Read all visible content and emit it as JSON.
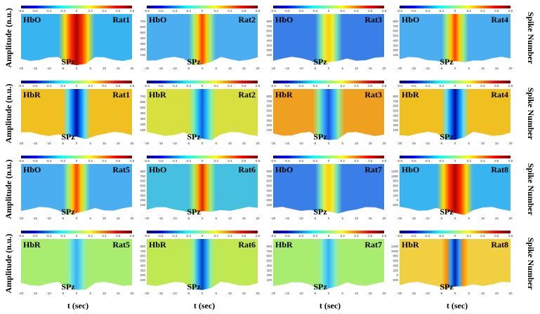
{
  "chart_data": {
    "type": "heatmap",
    "layout": "4x4 grid of panels",
    "ylabel_left": "Amplitude (n.u.)",
    "ylabel_right": "Spike Number",
    "xlabel": "t (sec)",
    "x_ticks": [
      "-20",
      "-15",
      "-10",
      "-5",
      "0",
      "5",
      "10",
      "15",
      "20"
    ],
    "xlim": [
      -20,
      20
    ],
    "colorbar_ticks": [
      "-0.8",
      "-0.6",
      "-0.4",
      "-0.2",
      "0",
      "0.2",
      "0.4",
      "0.6",
      "0.8"
    ],
    "colormap": "jet",
    "event_label": "SPz",
    "panels": [
      {
        "signal": "HbO",
        "rat": "Rat1",
        "row": 0,
        "col": 0,
        "peak_t": 0,
        "spike_ticks": [],
        "pattern": "strong-red-peak"
      },
      {
        "signal": "HbO",
        "rat": "Rat2",
        "row": 0,
        "col": 1,
        "peak_t": 0,
        "spike_ticks": [
          "100",
          "200",
          "300",
          "400",
          "500",
          "600",
          "700"
        ],
        "pattern": "moderate-peak"
      },
      {
        "signal": "HbO",
        "rat": "Rat3",
        "row": 0,
        "col": 2,
        "peak_t": 0,
        "spike_ticks": [
          "100",
          "200",
          "300",
          "400",
          "500",
          "600",
          "700",
          "800"
        ],
        "pattern": "weak-yellow-peak"
      },
      {
        "signal": "HbO",
        "rat": "Rat4",
        "row": 0,
        "col": 3,
        "peak_t": 0,
        "spike_ticks": [
          "100",
          "200",
          "300",
          "400",
          "500",
          "600",
          "700",
          "800"
        ],
        "pattern": "moderate-peak"
      },
      {
        "signal": "HbR",
        "rat": "Rat1",
        "row": 1,
        "col": 0,
        "peak_t": 0,
        "spike_ticks": [],
        "pattern": "strong-blue-dip"
      },
      {
        "signal": "HbR",
        "rat": "Rat2",
        "row": 1,
        "col": 1,
        "peak_t": 0,
        "spike_ticks": [
          "100",
          "200",
          "300",
          "400",
          "500",
          "600",
          "700"
        ],
        "pattern": "dip"
      },
      {
        "signal": "HbR",
        "rat": "Rat3",
        "row": 1,
        "col": 2,
        "peak_t": 0,
        "spike_ticks": [
          "100",
          "200",
          "300",
          "400",
          "500",
          "600",
          "700",
          "800"
        ],
        "pattern": "dip-red-left"
      },
      {
        "signal": "HbR",
        "rat": "Rat4",
        "row": 1,
        "col": 3,
        "peak_t": 0,
        "spike_ticks": [
          "100",
          "200",
          "300",
          "400",
          "500",
          "600",
          "700",
          "800"
        ],
        "pattern": "strong-blue-dip"
      },
      {
        "signal": "HbO",
        "rat": "Rat5",
        "row": 2,
        "col": 0,
        "peak_t": 0,
        "spike_ticks": [],
        "pattern": "moderate-peak"
      },
      {
        "signal": "HbO",
        "rat": "Rat6",
        "row": 2,
        "col": 1,
        "peak_t": 0,
        "spike_ticks": [
          "100",
          "200",
          "300",
          "400",
          "500",
          "600",
          "700",
          "800"
        ],
        "pattern": "peak-mixed"
      },
      {
        "signal": "HbO",
        "rat": "Rat7",
        "row": 2,
        "col": 2,
        "peak_t": 0,
        "spike_ticks": [
          "100",
          "200",
          "300",
          "400",
          "500",
          "600",
          "700",
          "800"
        ],
        "pattern": "weak-yellow-peak"
      },
      {
        "signal": "HbO",
        "rat": "Rat8",
        "row": 2,
        "col": 3,
        "peak_t": 0,
        "spike_ticks": [
          "-200",
          "0",
          "200",
          "400",
          "600",
          "800",
          "1000",
          "1200"
        ],
        "pattern": "strong-red-peak"
      },
      {
        "signal": "HbR",
        "rat": "Rat5",
        "row": 3,
        "col": 0,
        "peak_t": 0,
        "spike_ticks": [],
        "pattern": "weak-dip"
      },
      {
        "signal": "HbR",
        "rat": "Rat6",
        "row": 3,
        "col": 1,
        "peak_t": 0,
        "spike_ticks": [
          "100",
          "200",
          "300",
          "400",
          "500",
          "600",
          "700",
          "800"
        ],
        "pattern": "dip-mixed"
      },
      {
        "signal": "HbR",
        "rat": "Rat7",
        "row": 3,
        "col": 2,
        "peak_t": 0,
        "spike_ticks": [
          "100",
          "200",
          "300",
          "400",
          "500",
          "600",
          "700",
          "800"
        ],
        "pattern": "weak-dip"
      },
      {
        "signal": "HbR",
        "rat": "Rat8",
        "row": 3,
        "col": 3,
        "peak_t": 0,
        "spike_ticks": [
          "-200",
          "0",
          "200",
          "400",
          "600",
          "800",
          "1000",
          "1200"
        ],
        "pattern": "dip-red-right"
      }
    ]
  }
}
